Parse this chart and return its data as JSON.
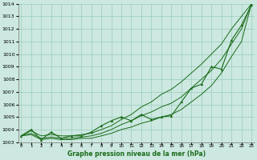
{
  "xlabel": "Graphe pression niveau de la mer (hPa)",
  "background_color": "#cce8e0",
  "grid_color": "#99ccbb",
  "line_color": "#1a6b1a",
  "x_labels": [
    "0",
    "1",
    "2",
    "3",
    "4",
    "5",
    "6",
    "7",
    "8",
    "9",
    "10",
    "11",
    "12",
    "13",
    "14",
    "15",
    "16",
    "17",
    "18",
    "19",
    "20",
    "21",
    "22",
    "23"
  ],
  "ylim": [
    1003,
    1014
  ],
  "xlim": [
    -0.3,
    23.3
  ],
  "yticks": [
    1003,
    1004,
    1005,
    1006,
    1007,
    1008,
    1009,
    1010,
    1011,
    1012,
    1013,
    1014
  ],
  "main_data": [
    1003.5,
    1004.0,
    1003.2,
    1003.8,
    1003.3,
    1003.5,
    1003.5,
    1003.8,
    1004.3,
    1004.7,
    1005.0,
    1004.7,
    1005.2,
    1004.8,
    1005.0,
    1005.1,
    1006.2,
    1007.3,
    1007.6,
    1009.0,
    1008.8,
    1011.1,
    1012.3,
    1013.9
  ],
  "line_upper": [
    1003.5,
    1003.9,
    1003.5,
    1003.6,
    1003.5,
    1003.5,
    1003.6,
    1003.7,
    1004.0,
    1004.3,
    1004.8,
    1005.2,
    1005.8,
    1006.2,
    1006.8,
    1007.2,
    1007.8,
    1008.5,
    1009.2,
    1010.0,
    1010.8,
    1012.0,
    1013.0,
    1014.0
  ],
  "line_lower": [
    1003.5,
    1003.6,
    1003.2,
    1003.3,
    1003.2,
    1003.2,
    1003.3,
    1003.3,
    1003.5,
    1003.7,
    1004.0,
    1004.2,
    1004.5,
    1004.7,
    1005.0,
    1005.2,
    1005.6,
    1006.2,
    1006.8,
    1007.5,
    1008.5,
    1009.8,
    1011.0,
    1014.0
  ],
  "line_mid": [
    1003.5,
    1003.7,
    1003.3,
    1003.4,
    1003.3,
    1003.3,
    1003.4,
    1003.5,
    1003.7,
    1004.0,
    1004.4,
    1004.7,
    1005.1,
    1005.4,
    1005.8,
    1006.1,
    1006.6,
    1007.3,
    1008.0,
    1008.7,
    1009.6,
    1010.8,
    1012.0,
    1014.0
  ]
}
